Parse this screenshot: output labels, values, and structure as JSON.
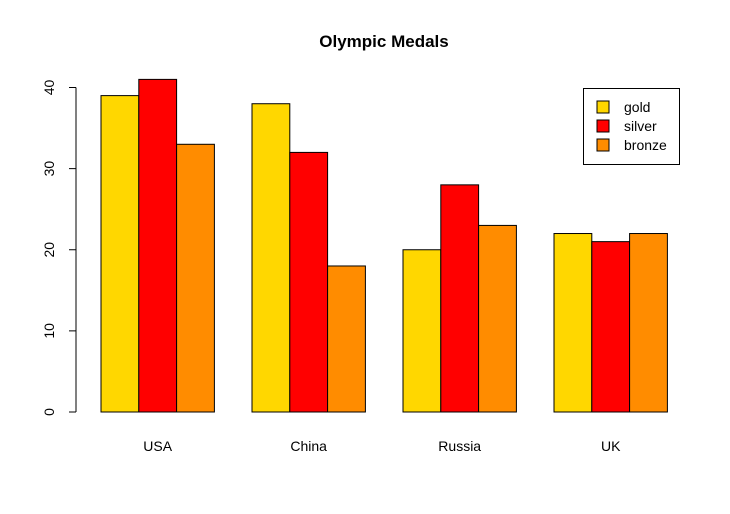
{
  "chart_data": {
    "type": "bar",
    "title": "Olympic Medals",
    "xlabel": "",
    "ylabel": "",
    "categories": [
      "USA",
      "China",
      "Russia",
      "UK"
    ],
    "series": [
      {
        "name": "gold",
        "color": "#FFD700",
        "values": [
          39,
          38,
          20,
          22
        ]
      },
      {
        "name": "silver",
        "color": "#FF0000",
        "values": [
          41,
          32,
          28,
          21
        ]
      },
      {
        "name": "bronze",
        "color": "#FF8C00",
        "values": [
          33,
          18,
          23,
          22
        ]
      }
    ],
    "yticks": [
      0,
      10,
      20,
      30,
      40
    ],
    "ylim": [
      0,
      41
    ],
    "grid": false,
    "legend_position": "top-right"
  }
}
